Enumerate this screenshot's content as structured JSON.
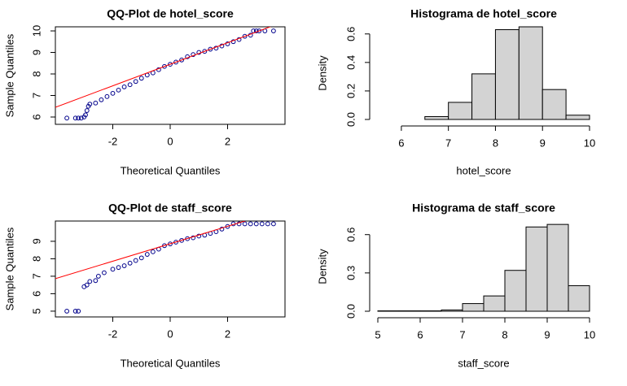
{
  "chart_data": [
    {
      "type": "qq",
      "title": "QQ-Plot de hotel_score",
      "x_label": "Theoretical Quantiles",
      "y_label": "Sample Quantiles",
      "x": [
        -3.6,
        -3.3,
        -3.2,
        -3.1,
        -3.0,
        -2.95,
        -2.9,
        -2.85,
        -2.8,
        -2.6,
        -2.4,
        -2.2,
        -2.0,
        -1.8,
        -1.6,
        -1.4,
        -1.2,
        -1.0,
        -0.8,
        -0.6,
        -0.4,
        -0.2,
        0,
        0.2,
        0.4,
        0.6,
        0.8,
        1.0,
        1.2,
        1.4,
        1.6,
        1.8,
        2.0,
        2.2,
        2.4,
        2.6,
        2.8,
        2.9,
        3.0,
        3.1,
        3.3,
        3.6
      ],
      "values": [
        5.95,
        5.95,
        5.95,
        5.95,
        6.0,
        6.1,
        6.3,
        6.5,
        6.6,
        6.65,
        6.8,
        6.95,
        7.1,
        7.25,
        7.4,
        7.5,
        7.65,
        7.8,
        7.95,
        8.05,
        8.2,
        8.35,
        8.45,
        8.55,
        8.65,
        8.8,
        8.9,
        9.0,
        9.05,
        9.15,
        9.2,
        9.3,
        9.4,
        9.5,
        9.6,
        9.75,
        9.8,
        10,
        10,
        10,
        10,
        10
      ],
      "color": "#00008b",
      "line": {
        "intercept": 8.45,
        "slope": 0.5,
        "color": "#ff0000"
      },
      "xlim": [
        -4,
        4
      ],
      "ylim": [
        5.66,
        10.19
      ],
      "xticks": [
        -2,
        0,
        2
      ],
      "yticks": [
        6,
        7,
        8,
        9,
        10
      ]
    },
    {
      "type": "histogram",
      "title": "Histograma de hotel_score",
      "x_label": "hotel_score",
      "y_label": "Density",
      "bins": [
        5.5,
        6,
        6.5,
        7,
        7.5,
        8,
        8.5,
        9,
        9.5,
        10
      ],
      "values": [
        0,
        0,
        0.02,
        0.12,
        0.32,
        0.63,
        0.65,
        0.21,
        0.03
      ],
      "color": "#d3d3d3",
      "xlim": [
        5.5,
        10
      ],
      "ylim": [
        0,
        0.65
      ],
      "xticks": [
        6,
        7,
        8,
        9,
        10
      ],
      "yticks": [
        {
          "value": 0,
          "label": "0.0"
        },
        0.2,
        0.4,
        0.6
      ]
    },
    {
      "type": "qq",
      "title": "QQ-Plot de staff_score",
      "x_label": "Theoretical Quantiles",
      "y_label": "Sample Quantiles",
      "x": [
        -3.6,
        -3.3,
        -3.2,
        -3.0,
        -2.9,
        -2.8,
        -2.6,
        -2.5,
        -2.3,
        -2.0,
        -1.8,
        -1.6,
        -1.4,
        -1.2,
        -1.0,
        -0.8,
        -0.6,
        -0.4,
        -0.2,
        0,
        0.2,
        0.4,
        0.6,
        0.8,
        1.0,
        1.2,
        1.4,
        1.6,
        1.8,
        2.0,
        2.2,
        2.4,
        2.6,
        2.8,
        3.0,
        3.2,
        3.4,
        3.6
      ],
      "values": [
        5,
        5,
        5,
        6.4,
        6.5,
        6.7,
        6.75,
        7.0,
        7.2,
        7.4,
        7.5,
        7.6,
        7.75,
        7.9,
        8.05,
        8.25,
        8.4,
        8.55,
        8.75,
        8.85,
        8.95,
        9.05,
        9.15,
        9.2,
        9.3,
        9.35,
        9.45,
        9.55,
        9.7,
        9.85,
        10,
        10,
        10,
        10,
        10,
        10,
        10,
        10
      ],
      "color": "#00008b",
      "line": {
        "intercept": 8.86,
        "slope": 0.5,
        "color": "#ff0000"
      },
      "xlim": [
        -4,
        4
      ],
      "ylim": [
        4.67,
        10.16
      ],
      "xticks": [
        -2,
        0,
        2
      ],
      "yticks": [
        5,
        6,
        7,
        8,
        9
      ]
    },
    {
      "type": "histogram",
      "title": "Histograma de staff_score",
      "x_label": "staff_score",
      "y_label": "Density",
      "bins": [
        5,
        5.5,
        6,
        6.5,
        7,
        7.5,
        8,
        8.5,
        9,
        9.5,
        10
      ],
      "values": [
        0.003,
        0.003,
        0.003,
        0.01,
        0.06,
        0.12,
        0.32,
        0.66,
        0.68,
        0.2
      ],
      "color": "#d3d3d3",
      "xlim": [
        5,
        10
      ],
      "ylim": [
        0,
        0.7
      ],
      "xticks": [
        5,
        6,
        7,
        8,
        9,
        10
      ],
      "yticks": [
        {
          "value": 0,
          "label": "0.0"
        },
        0.3,
        0.6
      ]
    }
  ]
}
